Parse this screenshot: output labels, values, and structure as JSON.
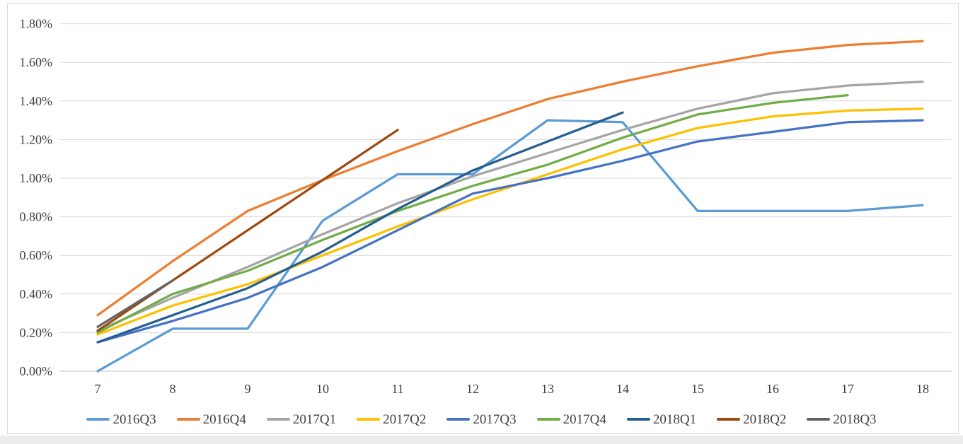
{
  "page": {
    "background": "#FFFFFF",
    "frame_border_color": "#D9D9D9",
    "outside_bottom_strip_color": "#ECECEC"
  },
  "chart_data": {
    "type": "line",
    "title": "",
    "xlabel": "",
    "ylabel": "",
    "grid": "horizontal",
    "legend_position": "bottom",
    "x": [
      7,
      8,
      9,
      10,
      11,
      12,
      13,
      14,
      15,
      16,
      17,
      18
    ],
    "x_tick_labels": [
      "7",
      "8",
      "9",
      "10",
      "11",
      "12",
      "13",
      "14",
      "15",
      "16",
      "17",
      "18"
    ],
    "y_axis": {
      "min": 0,
      "max": 1.8,
      "step": 0.2,
      "unit": "percent",
      "tick_labels": [
        "0.00%",
        "0.20%",
        "0.40%",
        "0.60%",
        "0.80%",
        "1.00%",
        "1.20%",
        "1.40%",
        "1.60%",
        "1.80%"
      ],
      "label_color": "#404040",
      "gridline_color": "#D9D9D9",
      "axis_line_color": "#BFBFBF"
    },
    "series": [
      {
        "name": "2016Q3",
        "color": "#5B9BD5",
        "values": [
          0.0,
          0.22,
          0.22,
          0.78,
          1.02,
          1.02,
          1.3,
          1.29,
          0.83,
          0.83,
          0.83,
          0.86
        ]
      },
      {
        "name": "2016Q4",
        "color": "#ED7D31",
        "values": [
          0.29,
          0.57,
          0.83,
          0.99,
          1.14,
          1.28,
          1.41,
          1.5,
          1.58,
          1.65,
          1.69,
          1.71
        ]
      },
      {
        "name": "2017Q1",
        "color": "#A5A5A5",
        "values": [
          0.21,
          0.38,
          0.54,
          0.71,
          0.87,
          1.01,
          1.13,
          1.25,
          1.36,
          1.44,
          1.48,
          1.5
        ]
      },
      {
        "name": "2017Q2",
        "color": "#FFC000",
        "values": [
          0.19,
          0.34,
          0.45,
          0.6,
          0.75,
          0.89,
          1.02,
          1.15,
          1.26,
          1.32,
          1.35,
          1.36
        ]
      },
      {
        "name": "2017Q3",
        "color": "#4472C4",
        "values": [
          0.15,
          0.26,
          0.38,
          0.54,
          0.73,
          0.92,
          1.0,
          1.09,
          1.19,
          1.24,
          1.29,
          1.3
        ]
      },
      {
        "name": "2017Q4",
        "color": "#70AD47",
        "values": [
          0.2,
          0.4,
          0.52,
          0.68,
          0.83,
          0.96,
          1.07,
          1.21,
          1.33,
          1.39,
          1.43,
          null
        ]
      },
      {
        "name": "2018Q1",
        "color": "#255E91",
        "values": [
          0.15,
          0.29,
          0.43,
          0.62,
          0.84,
          1.04,
          1.19,
          1.34,
          null,
          null,
          null,
          null
        ]
      },
      {
        "name": "2018Q2",
        "color": "#9E480E",
        "values": [
          0.21,
          0.47,
          0.73,
          0.99,
          1.25,
          null,
          null,
          null,
          null,
          null,
          null,
          null
        ]
      },
      {
        "name": "2018Q3",
        "color": "#636363",
        "values": [
          0.23,
          0.47,
          null,
          null,
          null,
          null,
          null,
          null,
          null,
          null,
          null,
          null
        ]
      }
    ]
  }
}
